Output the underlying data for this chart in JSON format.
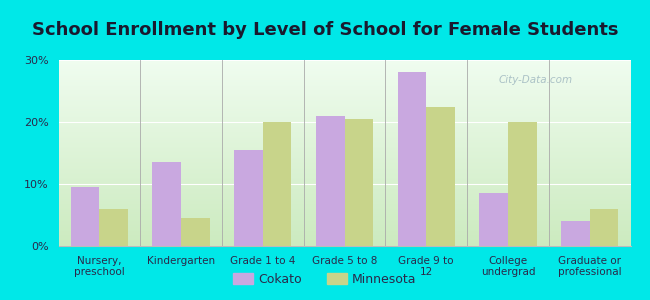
{
  "title": "School Enrollment by Level of School for Female Students",
  "categories": [
    "Nursery,\npreschool",
    "Kindergarten",
    "Grade 1 to 4",
    "Grade 5 to 8",
    "Grade 9 to\n12",
    "College\nundergrad",
    "Graduate or\nprofessional"
  ],
  "cokato": [
    9.5,
    13.5,
    15.5,
    21.0,
    28.0,
    8.5,
    4.0
  ],
  "minnesota": [
    6.0,
    4.5,
    20.0,
    20.5,
    22.5,
    20.0,
    6.0
  ],
  "cokato_color": "#c9a8e0",
  "minnesota_color": "#c8d48a",
  "background_outer": "#00e8e8",
  "background_inner_top": "#f0faf0",
  "background_inner_bottom": "#c8e8b8",
  "ylim": [
    0,
    30
  ],
  "yticks": [
    0,
    10,
    20,
    30
  ],
  "ytick_labels": [
    "0%",
    "10%",
    "20%",
    "30%"
  ],
  "bar_width": 0.35,
  "title_fontsize": 13,
  "title_color": "#1a1a2e",
  "tick_color": "#2a2a4a",
  "legend_label_cokato": "Cokato",
  "legend_label_minnesota": "Minnesota",
  "watermark": "City-Data.com"
}
